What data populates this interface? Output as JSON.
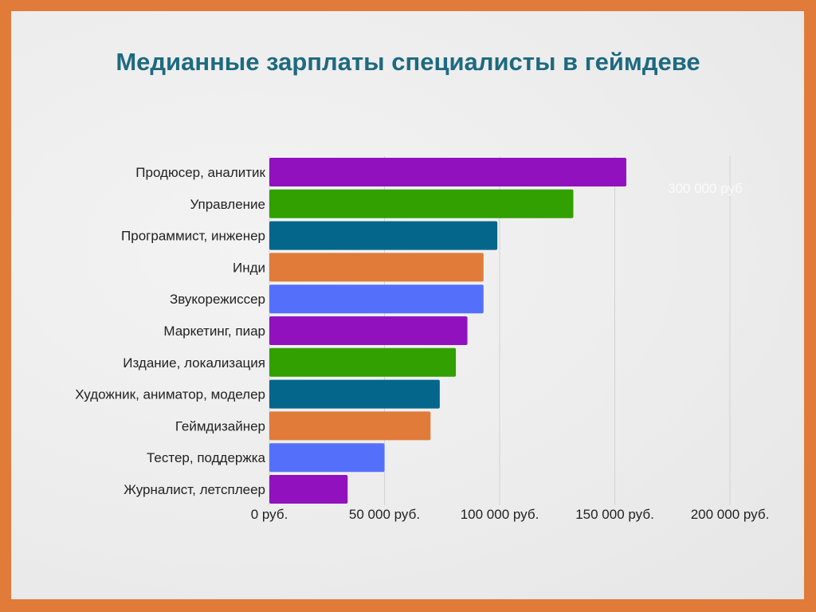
{
  "chart_data": {
    "type": "bar",
    "orientation": "horizontal",
    "title": "Медианные зарплаты специалисты в геймдеве",
    "categories": [
      "Продюсер, аналитик",
      "Управление",
      "Программист, инженер",
      "Инди",
      "Звукорежиссер",
      "Маркетинг, пиар",
      "Издание, локализация",
      "Художник, аниматор, моделер",
      "Геймдизайнер",
      "Тестер, поддержка",
      "Журналист, летсплеер"
    ],
    "values": [
      155000,
      132000,
      99000,
      93000,
      93000,
      86000,
      81000,
      74000,
      70000,
      50000,
      34000
    ],
    "colors": [
      "#9111bf",
      "#31a000",
      "#03668a",
      "#e07b3a",
      "#5470fb",
      "#9111bf",
      "#31a000",
      "#03668a",
      "#e07b3a",
      "#5470fb",
      "#9111bf"
    ],
    "xlim": [
      0,
      200000
    ],
    "xticks": [
      0,
      50000,
      100000,
      150000,
      200000
    ],
    "xtick_labels": [
      "0 руб.",
      "50 000 руб.",
      "100 000 руб.",
      "150 000 руб.",
      "200 000 руб."
    ],
    "extra_gridline_label": "300 000 руб",
    "xlabel": "",
    "ylabel": "",
    "grid": true
  },
  "colors": {
    "frame": "#e07b3a",
    "title": "#1e6a80",
    "grid": "#d2d2d2"
  }
}
